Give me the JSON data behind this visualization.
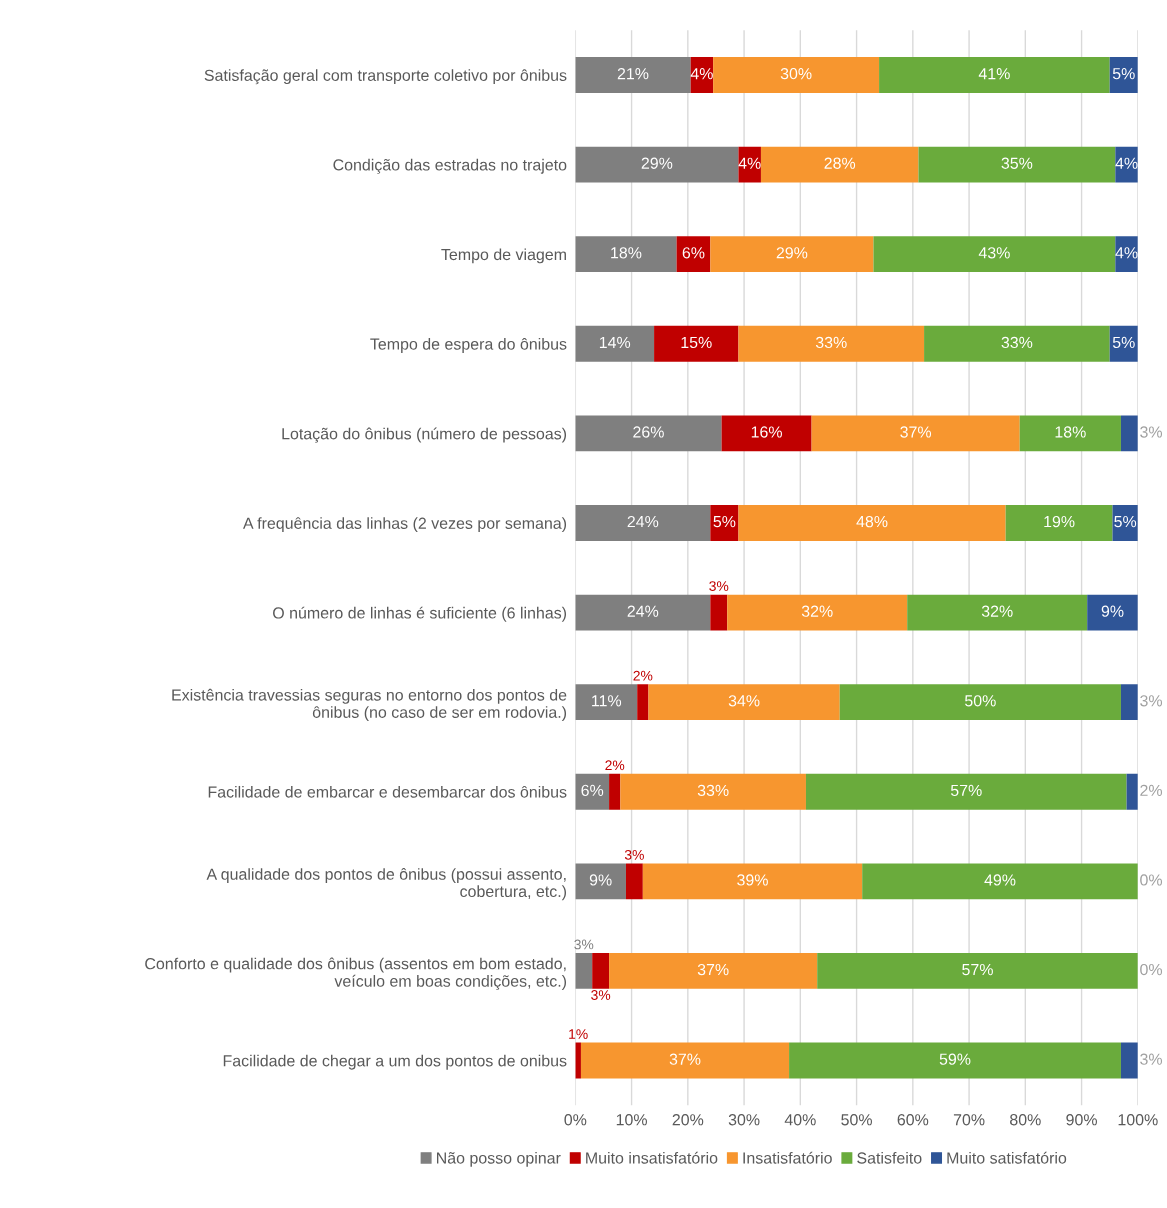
{
  "chart_data": {
    "type": "bar",
    "orientation": "horizontal",
    "stacked": true,
    "categories": [
      "Satisfação geral com transporte coletivo por ônibus",
      "Condição das estradas no trajeto",
      "Tempo de viagem",
      "Tempo de espera do ônibus",
      "Lotação do ônibus (número de pessoas)",
      "A frequência das linhas (2 vezes por semana)",
      "O número de linhas é suficiente (6 linhas)",
      "Existência travessias seguras no entorno dos pontos de ônibus (no caso de ser em rodovia.)",
      "Facilidade de embarcar e desembarcar dos ônibus",
      "A qualidade dos pontos de ônibus (possui assento, cobertura, etc.)",
      "Conforto e qualidade dos ônibus (assentos em bom estado, veículo em boas condições, etc.)",
      "Facilidade de chegar a um dos pontos de onibus"
    ],
    "series": [
      {
        "name": "Não posso opinar",
        "color": "#7f7f7f",
        "values": [
          20.5,
          29,
          18,
          14,
          26,
          24,
          24,
          11,
          6,
          9,
          3,
          0
        ],
        "value_labels": [
          "21%",
          "29%",
          "18%",
          "14%",
          "26%",
          "24%",
          "24%",
          "11%",
          "6%",
          "9%",
          "3%",
          null
        ]
      },
      {
        "name": "Muito insatisfatório",
        "color": "#c00000",
        "values": [
          4,
          4,
          6,
          15,
          16,
          5,
          3,
          2,
          2,
          3,
          3,
          1
        ],
        "value_labels": [
          "4%",
          "4%",
          "6%",
          "15%",
          "16%",
          "5%",
          "3%",
          "2%",
          "2%",
          "3%",
          "3%",
          "1%"
        ]
      },
      {
        "name": "Insatisfatório",
        "color": "#f7962f",
        "values": [
          29.5,
          28,
          29,
          33,
          37,
          47.5,
          32,
          34,
          33,
          39,
          37,
          37
        ],
        "value_labels": [
          "30%",
          "28%",
          "29%",
          "33%",
          "37%",
          "48%",
          "32%",
          "34%",
          "33%",
          "39%",
          "37%",
          "37%"
        ]
      },
      {
        "name": "Satisfeito",
        "color": "#6aab3c",
        "values": [
          41,
          35,
          43,
          33,
          18,
          19,
          32,
          50,
          57,
          49,
          57,
          59
        ],
        "value_labels": [
          "41%",
          "35%",
          "43%",
          "33%",
          "18%",
          "19%",
          "32%",
          "50%",
          "57%",
          "49%",
          "57%",
          "59%"
        ]
      },
      {
        "name": "Muito satisfatório",
        "color": "#2f5597",
        "values": [
          5,
          4,
          4,
          5,
          3,
          4.5,
          9,
          3,
          2,
          0,
          0,
          3
        ],
        "value_labels": [
          "5%",
          "4%",
          "4%",
          "5%",
          "3%",
          "5%",
          "9%",
          "3%",
          "2%",
          "0%",
          "0%",
          "3%"
        ]
      }
    ],
    "xlim": [
      0,
      100
    ],
    "xticks": [
      {
        "value": 0,
        "label": "0%"
      },
      {
        "value": 10,
        "label": "10%"
      },
      {
        "value": 20,
        "label": "20%"
      },
      {
        "value": 30,
        "label": "30%"
      },
      {
        "value": 40,
        "label": "40%"
      },
      {
        "value": 50,
        "label": "50%"
      },
      {
        "value": 60,
        "label": "60%"
      },
      {
        "value": 70,
        "label": "70%"
      },
      {
        "value": 80,
        "label": "80%"
      },
      {
        "value": 90,
        "label": "90%"
      },
      {
        "value": 100,
        "label": "100%"
      }
    ],
    "grid": "x",
    "legend": "bottom"
  }
}
